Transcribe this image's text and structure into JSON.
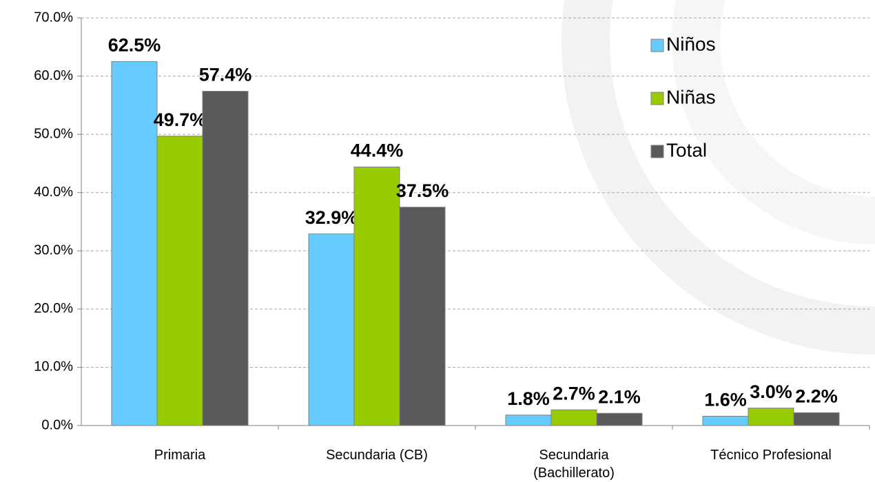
{
  "chart_data": {
    "type": "bar",
    "categories": [
      "Primaria",
      "Secundaria (CB)",
      "Secundaria (Bachillerato)",
      "Técnico Profesional"
    ],
    "series": [
      {
        "name": "Niños",
        "color": "#66ccff",
        "values": [
          62.5,
          32.9,
          1.8,
          1.6
        ],
        "value_labels": [
          "62.5%",
          "32.9%",
          "1.8%",
          "1.6%"
        ]
      },
      {
        "name": "Niñas",
        "color": "#99cc00",
        "values": [
          49.7,
          44.4,
          2.7,
          3.0
        ],
        "value_labels": [
          "49.7%",
          "44.4%",
          "2.7%",
          "3.0%"
        ]
      },
      {
        "name": "Total",
        "color": "#595959",
        "values": [
          57.4,
          37.5,
          2.1,
          2.2
        ],
        "value_labels": [
          "57.4%",
          "37.5%",
          "2.1%",
          "2.2%"
        ]
      }
    ],
    "ylim": [
      0,
      70
    ],
    "yticks": [
      {
        "value": 0,
        "label": "0.0%"
      },
      {
        "value": 10,
        "label": "10.0%"
      },
      {
        "value": 20,
        "label": "20.0%"
      },
      {
        "value": 30,
        "label": "30.0%"
      },
      {
        "value": 40,
        "label": "40.0%"
      },
      {
        "value": 50,
        "label": "50.0%"
      },
      {
        "value": 60,
        "label": "60.0%"
      },
      {
        "value": 70,
        "label": "70.0%"
      }
    ],
    "grid": true,
    "legend": "top-right"
  }
}
